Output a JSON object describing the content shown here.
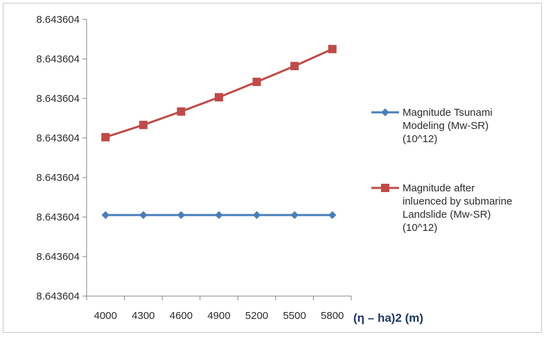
{
  "chart_data": {
    "type": "line",
    "title": "",
    "xlabel": "(η – ha)2 (m)",
    "ylabel": "",
    "categories": [
      "4000",
      "4300",
      "4600",
      "4900",
      "5200",
      "5500",
      "5800"
    ],
    "y_tick_labels": [
      "8.643604",
      "8.643604",
      "8.643604",
      "8.643604",
      "8.643604",
      "8.643604",
      "8.643604",
      "8.643604"
    ],
    "y_ticks_relative": [
      0,
      1,
      2,
      3,
      4,
      5,
      6,
      7
    ],
    "grid": false,
    "legend_position": "right",
    "series": [
      {
        "name": "Magnitude Tsunami Modeling (Mw-SR) (10^12)",
        "name_lines": [
          "Magnitude Tsunami",
          "Modeling (Mw-SR)",
          "(10^12)"
        ],
        "marker": "diamond",
        "color": "#4a7ebb",
        "values_relative": [
          2.05,
          2.05,
          2.05,
          2.05,
          2.05,
          2.05,
          2.05
        ]
      },
      {
        "name": "Magnitude after inluenced by submarine Landslide (Mw-SR) (10^12)",
        "name_lines": [
          "Magnitude after",
          "inluenced  by submarine",
          "Landslide  (Mw-SR)",
          "(10^12)"
        ],
        "marker": "square",
        "color": "#be4b48",
        "values_relative": [
          4.02,
          4.33,
          4.67,
          5.03,
          5.42,
          5.82,
          6.25
        ]
      }
    ]
  }
}
